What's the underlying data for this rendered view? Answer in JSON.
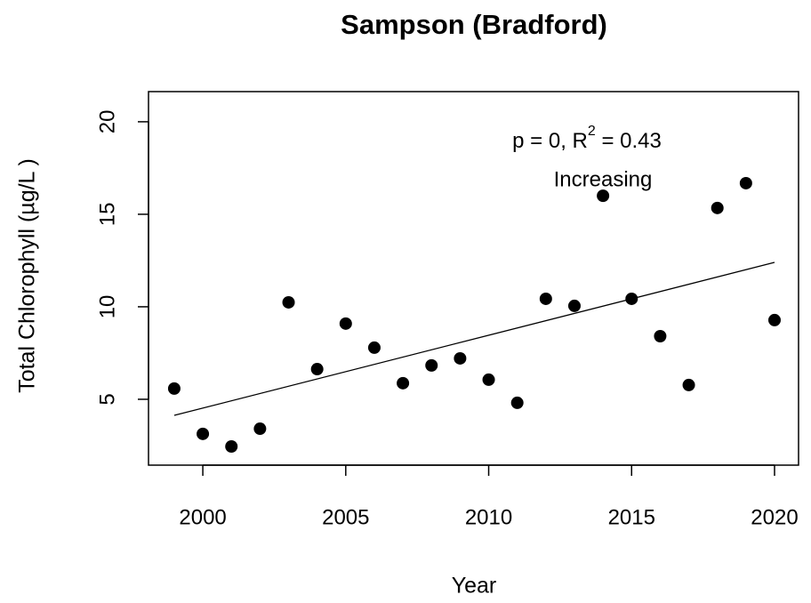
{
  "chart_data": {
    "type": "scatter",
    "title": "Sampson (Bradford)",
    "x_label": "Year",
    "y_label": "Total Chlorophyll (µg/L )",
    "x": [
      1999,
      2000,
      2001,
      2002,
      2003,
      2004,
      2005,
      2006,
      2007,
      2008,
      2009,
      2010,
      2011,
      2012,
      2013,
      2014,
      2015,
      2016,
      2017,
      2018,
      2019,
      2020
    ],
    "values": [
      5.58,
      3.13,
      2.45,
      3.41,
      10.24,
      6.63,
      9.09,
      7.79,
      5.87,
      6.83,
      7.21,
      6.06,
      4.81,
      10.43,
      10.05,
      16.0,
      10.43,
      8.41,
      5.77,
      15.34,
      16.68,
      9.28
    ],
    "color": "#000000",
    "trend": {
      "x": [
        1999,
        2020
      ],
      "values": [
        4.13,
        12.4
      ],
      "color": "#000000"
    },
    "annotation": [
      "p = 0, R",
      "2",
      " = 0.43"
    ],
    "annotation_2": "Increasing",
    "xlim": [
      1998.1,
      2020.84
    ],
    "ylim": [
      1.44,
      21.63
    ],
    "xticks": [
      2000,
      2005,
      2010,
      2015,
      2020
    ],
    "yticks": [
      5,
      10,
      15,
      20
    ]
  }
}
